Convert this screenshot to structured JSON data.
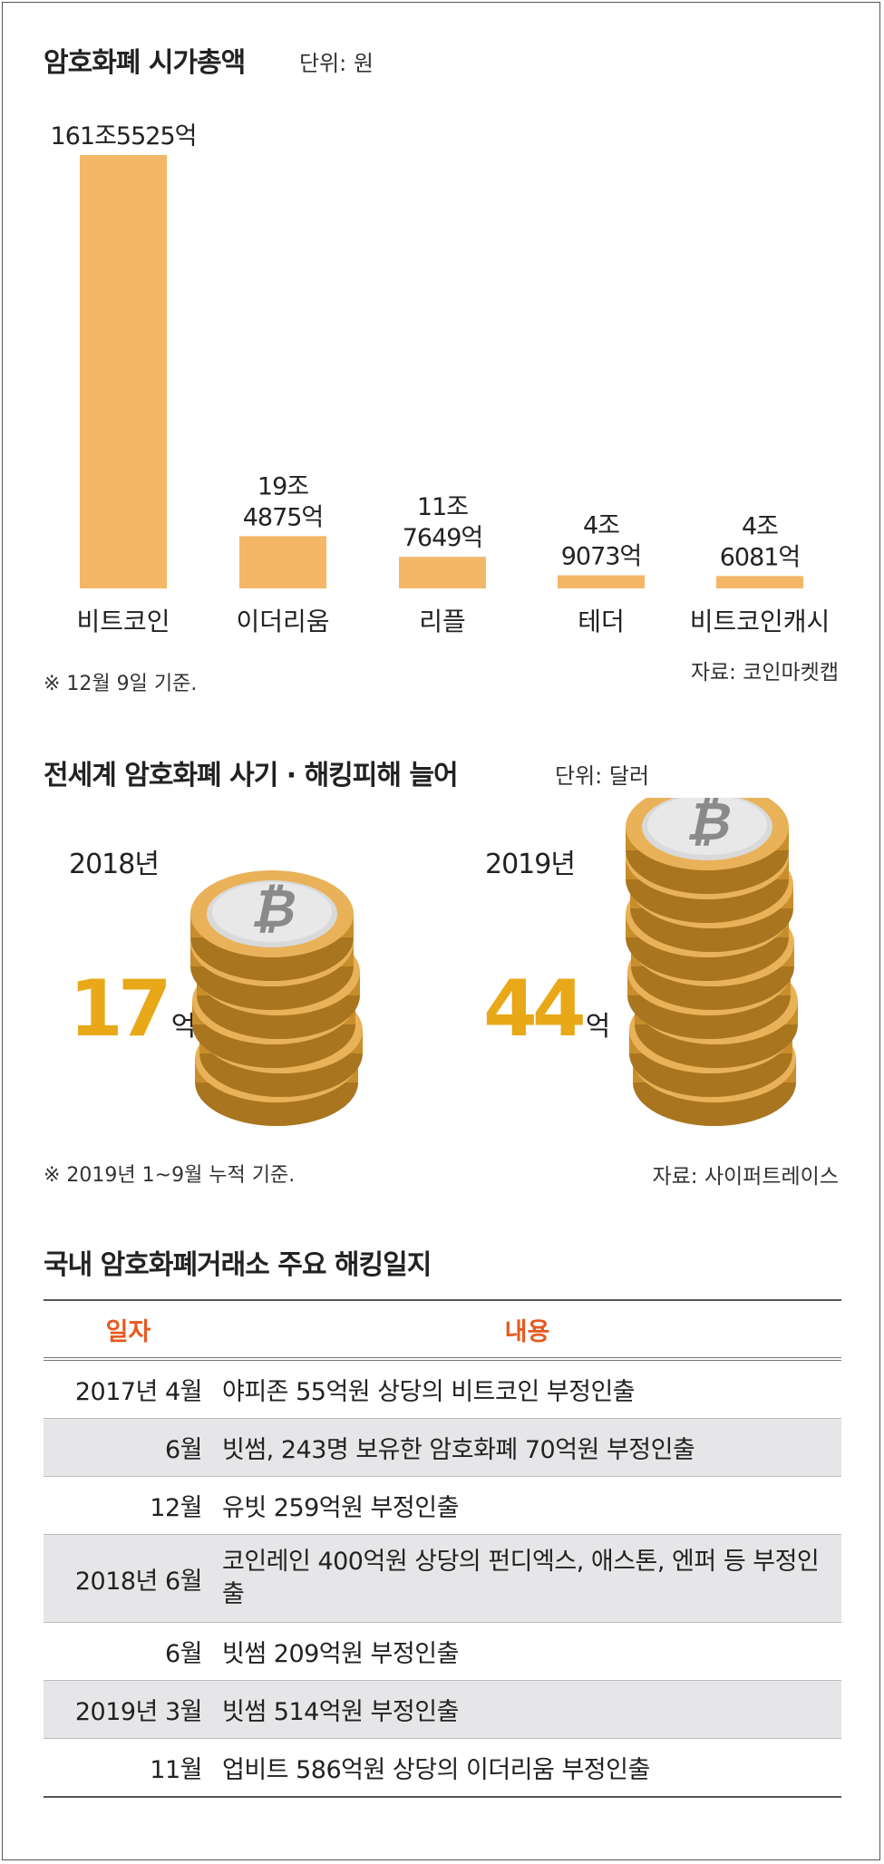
{
  "section1": {
    "title": "암호화폐 시가총액",
    "unit": "단위: 원",
    "note": "※ 12월 9일 기준.",
    "source": "자료: 코인마켓캡"
  },
  "chart_data": [
    {
      "type": "bar",
      "title": "암호화폐 시가총액",
      "unit": "단위: 원",
      "categories": [
        "비트코인",
        "이더리움",
        "리플",
        "테더",
        "비트코인캐시"
      ],
      "values": [
        1615525,
        194875,
        117649,
        49073,
        46081
      ],
      "value_unit": "억원",
      "data_labels": [
        [
          "161조5525억"
        ],
        [
          "19조",
          "4875억"
        ],
        [
          "11조",
          "7649억"
        ],
        [
          "4조",
          "9073억"
        ],
        [
          "4조",
          "6081억"
        ]
      ]
    },
    {
      "type": "bar",
      "title": "전세계 암호화폐 사기 · 해킹피해 늘어",
      "unit": "단위: 달러",
      "categories": [
        "2018년",
        "2019년"
      ],
      "values": [
        17,
        44
      ],
      "value_unit": "억"
    }
  ],
  "section2": {
    "title": "전세계 암호화폐 사기 · 해킹피해 늘어",
    "unit": "단위: 달러",
    "items": [
      {
        "year": "2018년",
        "value": "17",
        "suffix": "억"
      },
      {
        "year": "2019년",
        "value": "44",
        "suffix": "억"
      }
    ],
    "note": "※ 2019년 1~9월 누적 기준.",
    "source": "자료: 사이퍼트레이스"
  },
  "section3": {
    "title": "국내 암호화폐거래소 주요 해킹일지",
    "headers": [
      "일자",
      "내용"
    ],
    "rows": [
      {
        "date": "2017년 4월",
        "content": "야피존 55억원 상당의 비트코인 부정인출"
      },
      {
        "date": "6월",
        "content": "빗썸, 243명 보유한 암호화폐 70억원 부정인출"
      },
      {
        "date": "12월",
        "content": "유빗 259억원 부정인출"
      },
      {
        "date": "2018년 6월",
        "content": "코인레인 400억원 상당의  펀디엑스, 애스톤, 엔퍼 등 부정인출"
      },
      {
        "date": "6월",
        "content": "빗썸 209억원 부정인출"
      },
      {
        "date": "2019년 3월",
        "content": "빗썸 514억원 부정인출"
      },
      {
        "date": "11월",
        "content": "업비트 586억원 상당의 이더리움 부정인출"
      }
    ]
  },
  "colors": {
    "bar": "#f3b767",
    "highlight_number": "#e8a818",
    "table_header": "#e55a1f",
    "row_shade": "#e6e6e8"
  }
}
